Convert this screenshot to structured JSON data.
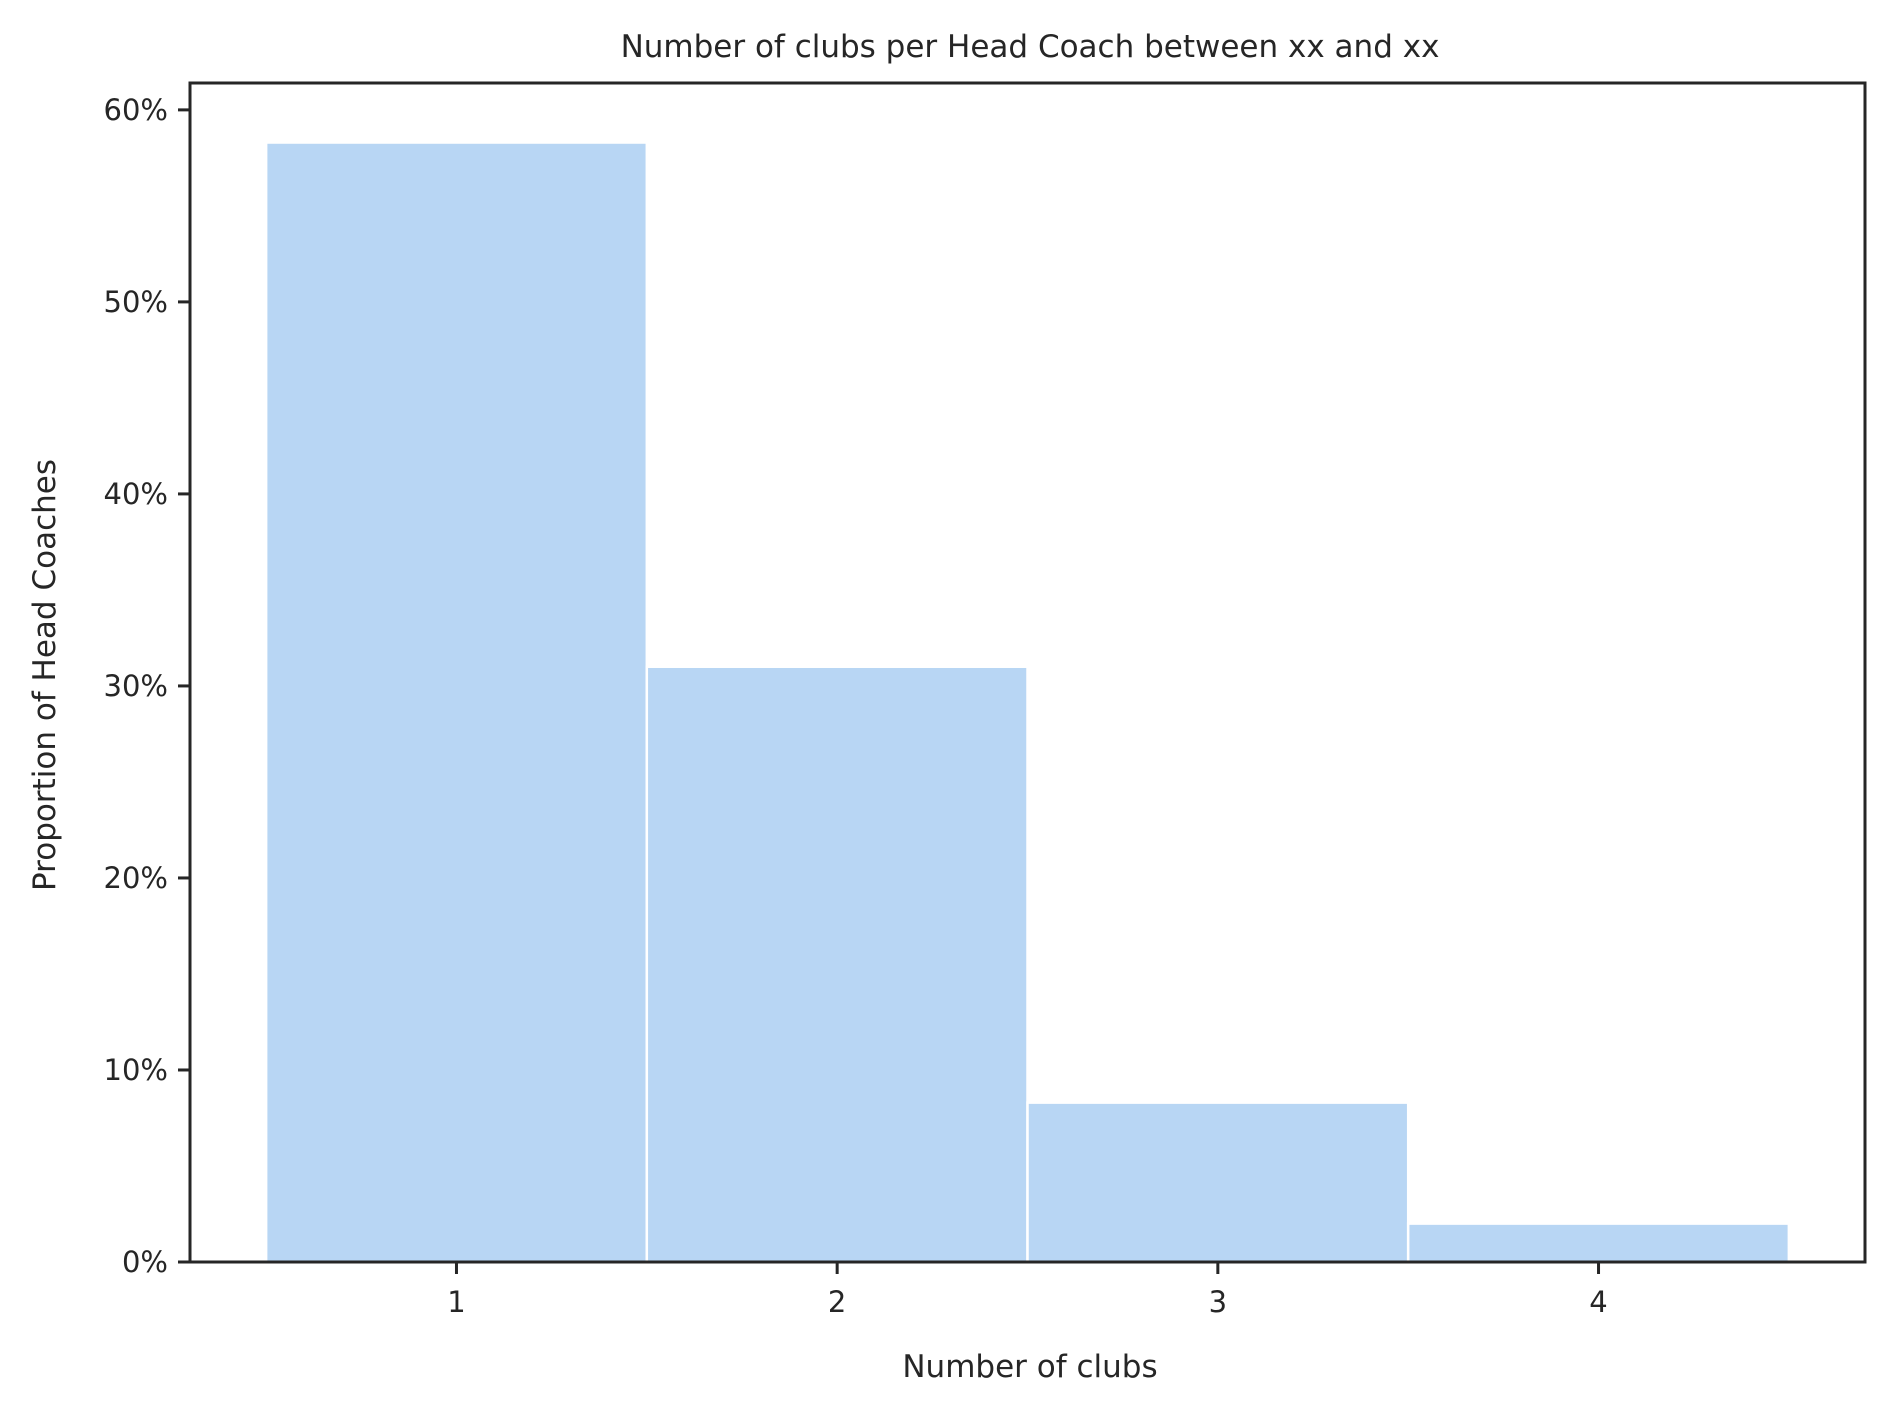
{
  "chart_data": {
    "type": "bar",
    "title": "Number of clubs per Head Coach between xx and xx",
    "xlabel": "Number of clubs",
    "ylabel": "Proportion of Head Coaches",
    "categories": [
      "1",
      "2",
      "3",
      "4"
    ],
    "x": [
      1,
      2,
      3,
      4
    ],
    "values": [
      0.583,
      0.31,
      0.083,
      0.02
    ],
    "bin_width": 1,
    "xlim": [
      0.3,
      4.7
    ],
    "ylim": [
      0,
      0.614
    ],
    "yticks": [
      0,
      0.1,
      0.2,
      0.3,
      0.4,
      0.5,
      0.6
    ],
    "ytick_labels": [
      "0%",
      "10%",
      "20%",
      "30%",
      "40%",
      "50%",
      "60%"
    ],
    "xticks": [
      1,
      2,
      3,
      4
    ],
    "xtick_labels": [
      "1",
      "2",
      "3",
      "4"
    ],
    "bar_color": "#b8d6f4",
    "edge_color": "#ffffff",
    "axis_color": "#262626",
    "grid": false,
    "legend": "none"
  }
}
